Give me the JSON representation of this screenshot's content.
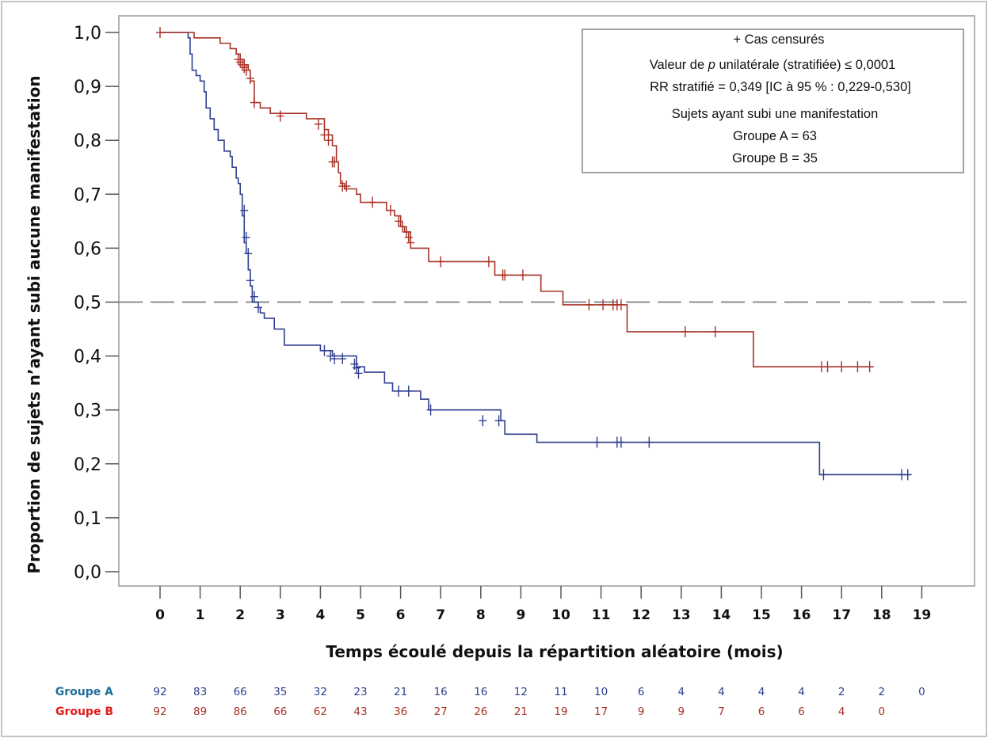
{
  "chart_data": {
    "type": "line",
    "subtype": "kaplan-meier",
    "xlabel": "Temps écoulé depuis la répartition aléatoire (mois)",
    "ylabel": "Proportion de sujets n’ayant subi aucune manifestation",
    "xlim": [
      0,
      19
    ],
    "ylim": [
      0.0,
      1.0
    ],
    "x_ticks": [
      "0",
      "1",
      "2",
      "3",
      "4",
      "5",
      "6",
      "7",
      "8",
      "9",
      "10",
      "11",
      "12",
      "13",
      "14",
      "15",
      "16",
      "17",
      "18",
      "19"
    ],
    "y_ticks": [
      "0,0",
      "0,1",
      "0,2",
      "0,3",
      "0,4",
      "0,5",
      "0,6",
      "0,7",
      "0,8",
      "0,9",
      "1,0"
    ],
    "reference_line": {
      "y": 0.5,
      "style": "dashed",
      "color": "#8c8c8c"
    },
    "grid": false,
    "legend": {
      "placement": "top-right",
      "lines": [
        "+ Cas censurés",
        "Valeur de {p} unilatérale (stratifiée) ≤ 0,0001",
        "RR stratifié = 0,349 [IC à 95 % : 0,229-0,530]",
        "Sujets ayant subi une manifestation",
        "Groupe A = 63",
        "Groupe B = 35"
      ],
      "italic_token": "p"
    },
    "series": [
      {
        "name": "Groupe A",
        "color": "#2f3f8f",
        "steps": [
          [
            0,
            1.0
          ],
          [
            0.7,
            0.99
          ],
          [
            0.75,
            0.96
          ],
          [
            0.8,
            0.93
          ],
          [
            0.9,
            0.92
          ],
          [
            1.0,
            0.91
          ],
          [
            1.1,
            0.89
          ],
          [
            1.15,
            0.86
          ],
          [
            1.25,
            0.84
          ],
          [
            1.35,
            0.82
          ],
          [
            1.45,
            0.8
          ],
          [
            1.6,
            0.78
          ],
          [
            1.75,
            0.77
          ],
          [
            1.8,
            0.75
          ],
          [
            1.9,
            0.73
          ],
          [
            1.95,
            0.72
          ],
          [
            2.0,
            0.7
          ],
          [
            2.05,
            0.66
          ],
          [
            2.1,
            0.61
          ],
          [
            2.15,
            0.59
          ],
          [
            2.2,
            0.56
          ],
          [
            2.25,
            0.53
          ],
          [
            2.3,
            0.5
          ],
          [
            2.45,
            0.49
          ],
          [
            2.5,
            0.48
          ],
          [
            2.6,
            0.47
          ],
          [
            2.85,
            0.45
          ],
          [
            3.1,
            0.42
          ],
          [
            4.0,
            0.41
          ],
          [
            4.3,
            0.4
          ],
          [
            4.9,
            0.38
          ],
          [
            5.1,
            0.37
          ],
          [
            5.6,
            0.35
          ],
          [
            5.8,
            0.335
          ],
          [
            6.5,
            0.32
          ],
          [
            6.7,
            0.3
          ],
          [
            8.5,
            0.28
          ],
          [
            8.6,
            0.255
          ],
          [
            9.4,
            0.24
          ],
          [
            16.45,
            0.18
          ]
        ],
        "end_x": 18.7,
        "censored": [
          [
            2.1,
            0.67
          ],
          [
            2.15,
            0.62
          ],
          [
            2.2,
            0.59
          ],
          [
            2.25,
            0.54
          ],
          [
            2.35,
            0.51
          ],
          [
            2.45,
            0.49
          ],
          [
            4.1,
            0.41
          ],
          [
            4.25,
            0.4
          ],
          [
            4.35,
            0.395
          ],
          [
            4.55,
            0.395
          ],
          [
            4.85,
            0.385
          ],
          [
            4.9,
            0.378
          ],
          [
            4.95,
            0.368
          ],
          [
            5.95,
            0.335
          ],
          [
            6.2,
            0.335
          ],
          [
            6.75,
            0.3
          ],
          [
            8.05,
            0.28
          ],
          [
            8.45,
            0.28
          ],
          [
            10.9,
            0.24
          ],
          [
            11.4,
            0.24
          ],
          [
            11.5,
            0.24
          ],
          [
            12.2,
            0.24
          ],
          [
            16.55,
            0.18
          ],
          [
            18.5,
            0.18
          ],
          [
            18.65,
            0.18
          ]
        ]
      },
      {
        "name": "Groupe B",
        "color": "#a83228",
        "steps": [
          [
            0,
            1.0
          ],
          [
            0.85,
            0.99
          ],
          [
            1.5,
            0.98
          ],
          [
            1.75,
            0.97
          ],
          [
            1.9,
            0.96
          ],
          [
            2.0,
            0.95
          ],
          [
            2.1,
            0.94
          ],
          [
            2.2,
            0.93
          ],
          [
            2.25,
            0.91
          ],
          [
            2.35,
            0.87
          ],
          [
            2.5,
            0.86
          ],
          [
            2.75,
            0.85
          ],
          [
            3.65,
            0.84
          ],
          [
            4.1,
            0.82
          ],
          [
            4.2,
            0.81
          ],
          [
            4.3,
            0.79
          ],
          [
            4.4,
            0.76
          ],
          [
            4.45,
            0.74
          ],
          [
            4.5,
            0.72
          ],
          [
            4.6,
            0.71
          ],
          [
            4.9,
            0.7
          ],
          [
            5.0,
            0.685
          ],
          [
            5.65,
            0.67
          ],
          [
            5.85,
            0.66
          ],
          [
            6.0,
            0.64
          ],
          [
            6.1,
            0.63
          ],
          [
            6.25,
            0.6
          ],
          [
            6.7,
            0.575
          ],
          [
            8.35,
            0.55
          ],
          [
            9.5,
            0.52
          ],
          [
            10.05,
            0.495
          ],
          [
            11.65,
            0.445
          ],
          [
            14.8,
            0.38
          ]
        ],
        "end_x": 17.8,
        "censored": [
          [
            0,
            1.0
          ],
          [
            1.95,
            0.95
          ],
          [
            2.0,
            0.945
          ],
          [
            2.05,
            0.94
          ],
          [
            2.1,
            0.935
          ],
          [
            2.15,
            0.93
          ],
          [
            2.25,
            0.915
          ],
          [
            2.35,
            0.87
          ],
          [
            3.0,
            0.845
          ],
          [
            3.95,
            0.83
          ],
          [
            4.1,
            0.81
          ],
          [
            4.2,
            0.8
          ],
          [
            4.3,
            0.76
          ],
          [
            4.35,
            0.76
          ],
          [
            4.55,
            0.715
          ],
          [
            4.65,
            0.715
          ],
          [
            5.3,
            0.685
          ],
          [
            5.75,
            0.67
          ],
          [
            5.95,
            0.65
          ],
          [
            6.05,
            0.64
          ],
          [
            6.15,
            0.63
          ],
          [
            6.2,
            0.62
          ],
          [
            6.25,
            0.61
          ],
          [
            7.0,
            0.575
          ],
          [
            8.2,
            0.575
          ],
          [
            8.55,
            0.55
          ],
          [
            8.6,
            0.55
          ],
          [
            9.05,
            0.55
          ],
          [
            10.7,
            0.495
          ],
          [
            11.05,
            0.495
          ],
          [
            11.3,
            0.495
          ],
          [
            11.4,
            0.495
          ],
          [
            11.5,
            0.495
          ],
          [
            13.1,
            0.445
          ],
          [
            13.85,
            0.445
          ],
          [
            16.5,
            0.38
          ],
          [
            16.65,
            0.38
          ],
          [
            17.0,
            0.38
          ],
          [
            17.4,
            0.38
          ],
          [
            17.7,
            0.38
          ]
        ]
      }
    ],
    "risk_table": {
      "rows": [
        {
          "label": "Groupe A",
          "label_color": "#1f6e9c",
          "num_color": "#2f3f8f",
          "values": [
            "92",
            "83",
            "66",
            "35",
            "32",
            "23",
            "21",
            "16",
            "16",
            "12",
            "11",
            "10",
            "6",
            "4",
            "4",
            "4",
            "4",
            "2",
            "2",
            "0"
          ]
        },
        {
          "label": "Groupe B",
          "label_color": "#e01b1b",
          "num_color": "#a83228",
          "values": [
            "92",
            "89",
            "86",
            "66",
            "62",
            "43",
            "36",
            "27",
            "26",
            "21",
            "19",
            "17",
            "9",
            "9",
            "7",
            "6",
            "6",
            "4",
            "0"
          ]
        }
      ]
    }
  }
}
